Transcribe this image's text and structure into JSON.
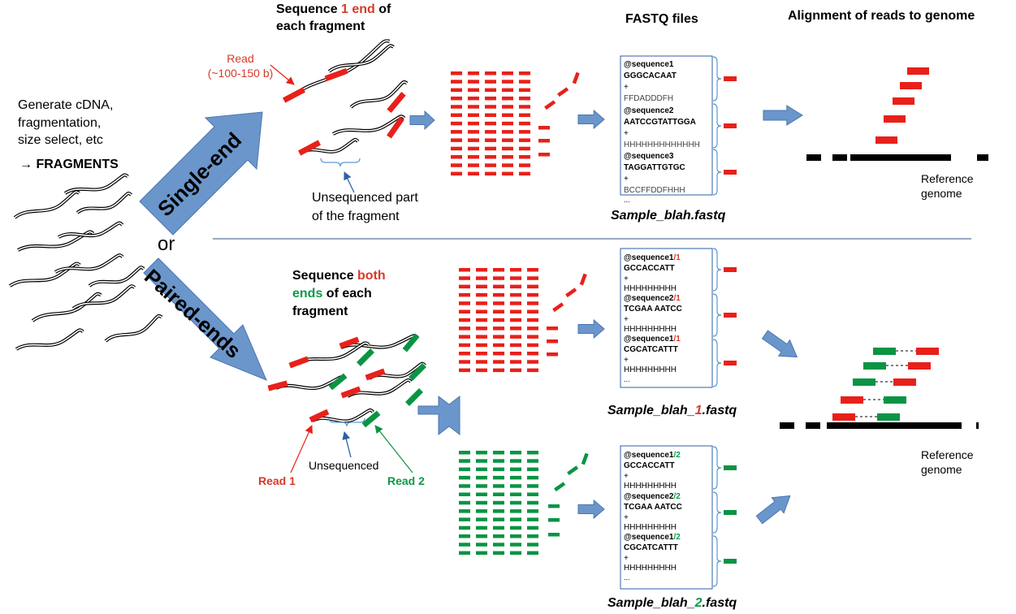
{
  "colors": {
    "red": "#e8201a",
    "green": "#0a9444",
    "blue_arrow": "#6b96cb",
    "black": "#000000",
    "label_red": "#d63a2a",
    "label_green": "#0d9a47"
  },
  "left": {
    "generate_lines": [
      "Generate cDNA,",
      "fragmentation,",
      "size select, etc"
    ],
    "fragments_label": "→ FRAGMENTS",
    "or_label": "or",
    "single_end_arrow_label": "Single-end",
    "paired_end_arrow_label": "Paired-ends"
  },
  "single": {
    "title_part1": "Sequence ",
    "title_highlight": "1 end",
    "title_part2": " of",
    "title_line2": "each fragment",
    "read_label": "Read",
    "read_length": "(~100-150 b)",
    "unsequenced_line1": "Unsequenced part",
    "unsequenced_line2": "of the fragment",
    "fastq": {
      "entries": [
        {
          "id": "@sequence1",
          "seq": "GGGCACAAT",
          "plus": "+",
          "qual": "FFDADDDFH"
        },
        {
          "id": "@sequence2",
          "seq": "AATCCGTATTGGA",
          "plus": "+",
          "qual": "HHHHHHHHHHHHH"
        },
        {
          "id": "@sequence3",
          "seq": "TAGGATTGTGC",
          "plus": "+",
          "qual": "BCCFFDDFHHH"
        }
      ],
      "ellipsis": "...",
      "filename": "Sample_blah.fastq"
    }
  },
  "headers": {
    "fastq_files": "FASTQ files",
    "alignment": "Alignment of reads to genome"
  },
  "reference_genome_lines": [
    "Reference",
    "genome"
  ],
  "paired": {
    "title_part1": "Sequence ",
    "title_both": "both",
    "title_ends": "ends",
    "title_part2": " of each",
    "title_line3": "fragment",
    "unsequenced": "Unsequenced",
    "read1": "Read 1",
    "read2": "Read 2",
    "fastq1": {
      "entries": [
        {
          "id": "@sequence1",
          "mate": "/1",
          "seq": "GCCACCATT",
          "plus": "+",
          "qual": "HHHHHHHHH"
        },
        {
          "id": "@sequence2",
          "mate": "/1",
          "seq": "TCGAA AATCC",
          "plus": "+",
          "qual": "HHHHHHHHH"
        },
        {
          "id": "@sequence1",
          "mate": "/1",
          "seq": "CGCATCATTT",
          "plus": "+",
          "qual": "HHHHHHHHH"
        }
      ],
      "ellipsis": "...",
      "filename_prefix": "Sample_blah_",
      "filename_num": "1",
      "filename_suffix": ".fastq"
    },
    "fastq2": {
      "entries": [
        {
          "id": "@sequence1",
          "mate": "/2",
          "seq": "GCCACCATT",
          "plus": "+",
          "qual": "HHHHHHHHH"
        },
        {
          "id": "@sequence2",
          "mate": "/2",
          "seq": "TCGAA AATCC",
          "plus": "+",
          "qual": "HHHHHHHHH"
        },
        {
          "id": "@sequence1",
          "mate": "/2",
          "seq": "CGCATCATTT",
          "plus": "+",
          "qual": "HHHHHHHHH"
        }
      ],
      "ellipsis": "...",
      "filename_prefix": "Sample_blah_",
      "filename_num": "2",
      "filename_suffix": ".fastq"
    }
  }
}
